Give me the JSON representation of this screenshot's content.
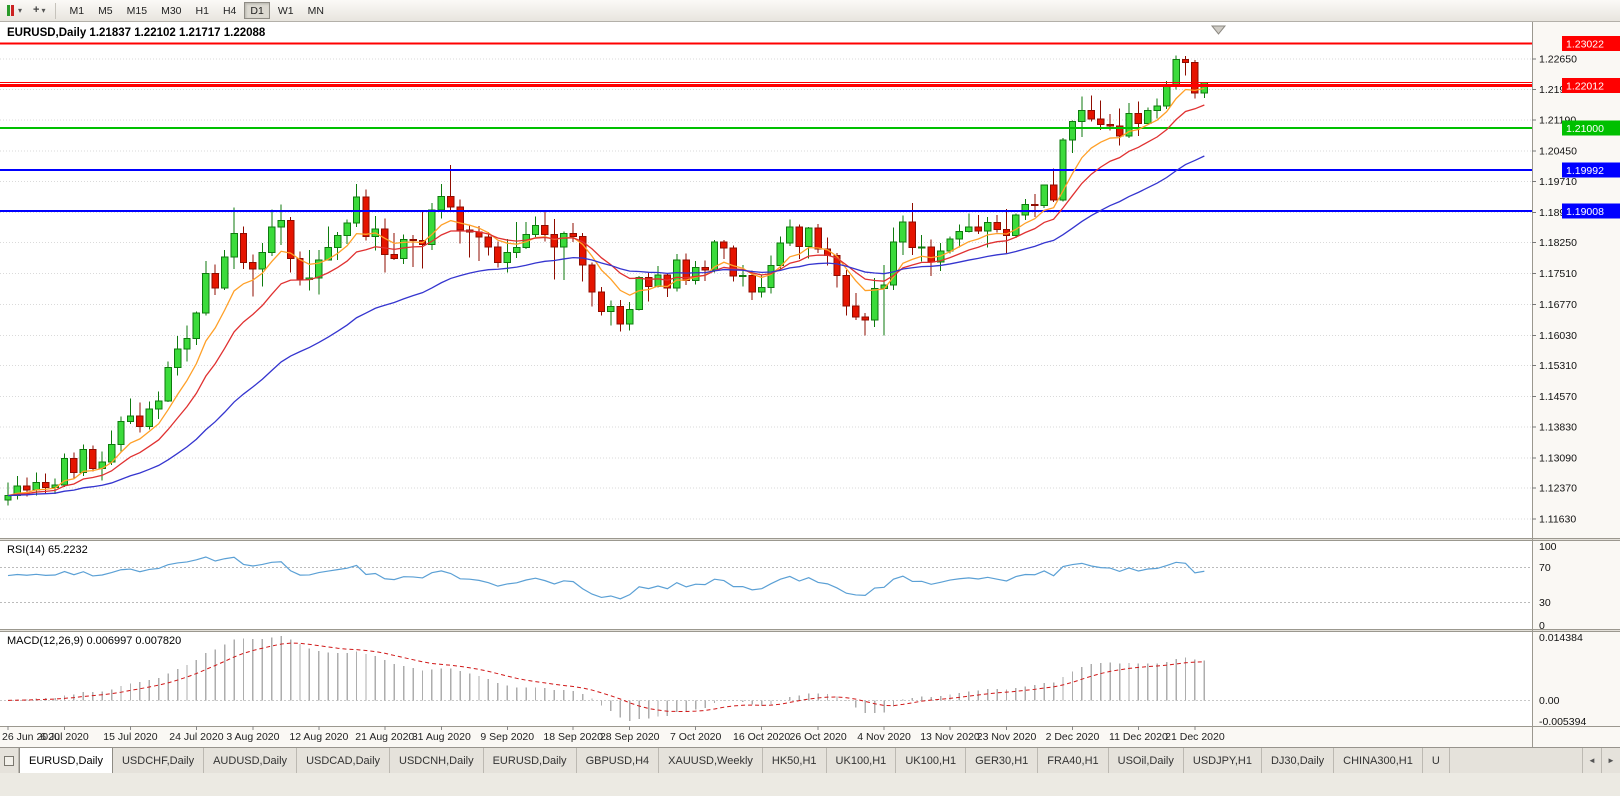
{
  "toolbar": {
    "timeframes": [
      "M1",
      "M5",
      "M15",
      "M30",
      "H1",
      "H4",
      "D1",
      "W1",
      "MN"
    ],
    "active_timeframe": "D1"
  },
  "icons": {
    "chevron_down": "▾",
    "cursor_plus": "+",
    "tab_scroll_left": "◄",
    "tab_scroll_right": "►"
  },
  "chart_header": {
    "title": "EURUSD,Daily 1.21837 1.22102 1.21717 1.22088"
  },
  "rsi_panel": {
    "title": "RSI(14) 65.2232",
    "levels": [
      "100",
      "70",
      "30",
      "0"
    ]
  },
  "macd_panel": {
    "title": "MACD(12,26,9) 0.006997 0.007820",
    "levels": [
      "0.014384",
      "0.00",
      "-0.005394"
    ]
  },
  "tabs": {
    "items": [
      {
        "label": "EURUSD,Daily",
        "active": true
      },
      {
        "label": "USDCHF,Daily"
      },
      {
        "label": "AUDUSD,Daily"
      },
      {
        "label": "USDCAD,Daily"
      },
      {
        "label": "USDCNH,Daily"
      },
      {
        "label": "EURUSD,Daily"
      },
      {
        "label": "GBPUSD,H4"
      },
      {
        "label": "XAUUSD,Weekly"
      },
      {
        "label": "HK50,H1"
      },
      {
        "label": "UK100,H1"
      },
      {
        "label": "UK100,H1"
      },
      {
        "label": "GER30,H1"
      },
      {
        "label": "FRA40,H1"
      },
      {
        "label": "USOil,Daily"
      },
      {
        "label": "USDJPY,H1"
      },
      {
        "label": "DJ30,Daily"
      },
      {
        "label": "CHINA300,H1"
      },
      {
        "label": "U"
      }
    ]
  },
  "chart_data": {
    "type": "candlestick",
    "symbol": "EURUSD",
    "timeframe": "Daily",
    "current_ohlc": {
      "open": 1.21837,
      "high": 1.22102,
      "low": 1.21717,
      "close": 1.22088
    },
    "price_axis": {
      "min": 1.11175,
      "max": 1.23536,
      "ticks": [
        "1.22650",
        "1.21920",
        "1.21190",
        "1.20450",
        "1.19710",
        "1.18970",
        "1.18250",
        "1.17510",
        "1.16770",
        "1.16030",
        "1.15310",
        "1.14570",
        "1.13830",
        "1.13090",
        "1.12370",
        "1.11630"
      ]
    },
    "colors": {
      "bull_fill": "#3BDB3B",
      "bull_stroke": "#0E7A0E",
      "bear_fill": "#E51400",
      "bear_stroke": "#8F0C00",
      "grid": "#DADada"
    },
    "hlines": [
      {
        "price": 1.23022,
        "label": "1.23022",
        "color": "#FF0000",
        "width": 2
      },
      {
        "price": 1.22088,
        "label": "",
        "color": "#FF0000",
        "width": 1
      },
      {
        "price": 1.22012,
        "label": "1.22012",
        "color": "#FF0000",
        "width": 3
      },
      {
        "price": 1.21,
        "label": "1.21000",
        "color": "#00C000",
        "width": 2
      },
      {
        "price": 1.19992,
        "label": "1.19992",
        "color": "#0000FF",
        "width": 2
      },
      {
        "price": 1.19008,
        "label": "1.19008",
        "color": "#0000FF",
        "width": 2
      }
    ],
    "moving_averages": [
      {
        "period": 7,
        "method": "ema",
        "color": "#FFA028"
      },
      {
        "period": 13,
        "method": "ema",
        "color": "#E03131"
      },
      {
        "period": 34,
        "method": "ema",
        "color": "#3535CF"
      }
    ],
    "rsi": {
      "period": 14,
      "current": 65.2232,
      "color": "#5BA0D5",
      "levels": [
        70,
        30
      ],
      "range": [
        0,
        100
      ]
    },
    "macd": {
      "fast": 12,
      "slow": 26,
      "signal": 9,
      "macd_value": 0.006997,
      "signal_value": 0.00782,
      "range": [
        -0.005394,
        0.014384
      ],
      "histogram_color": "#ADADAD",
      "signal_color": "#D01818"
    },
    "date_labels": [
      {
        "i": 0,
        "t": "26 Jun 2020"
      },
      {
        "i": 6,
        "t": "6 Jul 2020"
      },
      {
        "i": 13,
        "t": "15 Jul 2020"
      },
      {
        "i": 20,
        "t": "24 Jul 2020"
      },
      {
        "i": 26,
        "t": "3 Aug 2020"
      },
      {
        "i": 33,
        "t": "12 Aug 2020"
      },
      {
        "i": 40,
        "t": "21 Aug 2020"
      },
      {
        "i": 46,
        "t": "31 Aug 2020"
      },
      {
        "i": 53,
        "t": "9 Sep 2020"
      },
      {
        "i": 60,
        "t": "18 Sep 2020"
      },
      {
        "i": 66,
        "t": "28 Sep 2020"
      },
      {
        "i": 73,
        "t": "7 Oct 2020"
      },
      {
        "i": 80,
        "t": "16 Oct 2020"
      },
      {
        "i": 86,
        "t": "26 Oct 2020"
      },
      {
        "i": 93,
        "t": "4 Nov 2020"
      },
      {
        "i": 100,
        "t": "13 Nov 2020"
      },
      {
        "i": 106,
        "t": "23 Nov 2020"
      },
      {
        "i": 113,
        "t": "2 Dec 2020"
      },
      {
        "i": 120,
        "t": "11 Dec 2020"
      },
      {
        "i": 126,
        "t": "21 Dec 2020"
      }
    ],
    "candles": [
      [
        1.1208,
        1.125,
        1.1195,
        1.1219
      ],
      [
        1.1219,
        1.1266,
        1.121,
        1.1242
      ],
      [
        1.1242,
        1.1262,
        1.1217,
        1.1232
      ],
      [
        1.1232,
        1.1275,
        1.1219,
        1.1251
      ],
      [
        1.1251,
        1.1272,
        1.1223,
        1.1239
      ],
      [
        1.1239,
        1.126,
        1.1223,
        1.1245
      ],
      [
        1.1245,
        1.132,
        1.124,
        1.1308
      ],
      [
        1.1308,
        1.1322,
        1.1259,
        1.1274
      ],
      [
        1.1274,
        1.1342,
        1.1266,
        1.133
      ],
      [
        1.133,
        1.1339,
        1.1277,
        1.1284
      ],
      [
        1.1284,
        1.1325,
        1.1255,
        1.13
      ],
      [
        1.13,
        1.1375,
        1.1292,
        1.1342
      ],
      [
        1.1342,
        1.1409,
        1.1325,
        1.1397
      ],
      [
        1.1397,
        1.1452,
        1.139,
        1.141
      ],
      [
        1.141,
        1.1442,
        1.137,
        1.1385
      ],
      [
        1.1385,
        1.1444,
        1.1378,
        1.1427
      ],
      [
        1.1427,
        1.1468,
        1.1402,
        1.1446
      ],
      [
        1.1446,
        1.154,
        1.1443,
        1.1526
      ],
      [
        1.1526,
        1.1601,
        1.1507,
        1.157
      ],
      [
        1.157,
        1.1627,
        1.154,
        1.1596
      ],
      [
        1.1596,
        1.166,
        1.158,
        1.1656
      ],
      [
        1.1656,
        1.1781,
        1.165,
        1.1751
      ],
      [
        1.1751,
        1.1773,
        1.17,
        1.1716
      ],
      [
        1.1716,
        1.1807,
        1.1712,
        1.1791
      ],
      [
        1.1791,
        1.1909,
        1.1762,
        1.1847
      ],
      [
        1.1847,
        1.1864,
        1.1762,
        1.1778
      ],
      [
        1.1778,
        1.1797,
        1.1696,
        1.1762
      ],
      [
        1.1762,
        1.1824,
        1.172,
        1.1802
      ],
      [
        1.1802,
        1.1905,
        1.1793,
        1.1863
      ],
      [
        1.1863,
        1.1916,
        1.1819,
        1.1878
      ],
      [
        1.1878,
        1.1886,
        1.1754,
        1.1787
      ],
      [
        1.1787,
        1.1804,
        1.1722,
        1.1737
      ],
      [
        1.1737,
        1.1808,
        1.171,
        1.174
      ],
      [
        1.174,
        1.1808,
        1.1701,
        1.1784
      ],
      [
        1.1784,
        1.1864,
        1.1782,
        1.1813
      ],
      [
        1.1813,
        1.1851,
        1.1783,
        1.1842
      ],
      [
        1.1842,
        1.188,
        1.1822,
        1.1872
      ],
      [
        1.1872,
        1.1966,
        1.1863,
        1.1934
      ],
      [
        1.1934,
        1.1952,
        1.183,
        1.184
      ],
      [
        1.184,
        1.1889,
        1.1806,
        1.1858
      ],
      [
        1.1858,
        1.1883,
        1.1754,
        1.1797
      ],
      [
        1.1797,
        1.1848,
        1.1783,
        1.1787
      ],
      [
        1.1787,
        1.1845,
        1.1774,
        1.1833
      ],
      [
        1.1833,
        1.1843,
        1.1767,
        1.183
      ],
      [
        1.183,
        1.19,
        1.1763,
        1.182
      ],
      [
        1.182,
        1.192,
        1.1808,
        1.1903
      ],
      [
        1.1903,
        1.1965,
        1.1883,
        1.1935
      ],
      [
        1.1935,
        1.2011,
        1.1898,
        1.191
      ],
      [
        1.191,
        1.1928,
        1.1823,
        1.1855
      ],
      [
        1.1855,
        1.1868,
        1.1789,
        1.1851
      ],
      [
        1.1851,
        1.1865,
        1.1781,
        1.1839
      ],
      [
        1.1839,
        1.185,
        1.1794,
        1.1815
      ],
      [
        1.1815,
        1.1828,
        1.1766,
        1.1778
      ],
      [
        1.1778,
        1.1834,
        1.1753,
        1.1802
      ],
      [
        1.1802,
        1.1874,
        1.1788,
        1.1814
      ],
      [
        1.1814,
        1.1874,
        1.181,
        1.1845
      ],
      [
        1.1845,
        1.1888,
        1.1839,
        1.1866
      ],
      [
        1.1866,
        1.19,
        1.1828,
        1.1845
      ],
      [
        1.1845,
        1.1882,
        1.1737,
        1.1815
      ],
      [
        1.1815,
        1.1852,
        1.1736,
        1.1847
      ],
      [
        1.1847,
        1.1872,
        1.1827,
        1.184
      ],
      [
        1.184,
        1.1848,
        1.1732,
        1.1772
      ],
      [
        1.1772,
        1.1778,
        1.1672,
        1.1707
      ],
      [
        1.1707,
        1.1719,
        1.1651,
        1.166
      ],
      [
        1.166,
        1.1686,
        1.1626,
        1.1672
      ],
      [
        1.1672,
        1.1688,
        1.1612,
        1.163
      ],
      [
        1.163,
        1.1683,
        1.1615,
        1.1665
      ],
      [
        1.1665,
        1.1745,
        1.1662,
        1.1742
      ],
      [
        1.1742,
        1.1755,
        1.1684,
        1.172
      ],
      [
        1.172,
        1.1769,
        1.1717,
        1.1747
      ],
      [
        1.1747,
        1.1752,
        1.1695,
        1.1716
      ],
      [
        1.1716,
        1.1798,
        1.1708,
        1.1783
      ],
      [
        1.1783,
        1.1799,
        1.1724,
        1.1734
      ],
      [
        1.1734,
        1.1781,
        1.1725,
        1.1765
      ],
      [
        1.1765,
        1.1782,
        1.1733,
        1.176
      ],
      [
        1.176,
        1.1831,
        1.1754,
        1.1826
      ],
      [
        1.1826,
        1.1831,
        1.1786,
        1.1812
      ],
      [
        1.1812,
        1.1818,
        1.1732,
        1.1745
      ],
      [
        1.1745,
        1.1772,
        1.172,
        1.1746
      ],
      [
        1.1746,
        1.1758,
        1.1688,
        1.1707
      ],
      [
        1.1707,
        1.1746,
        1.1694,
        1.1718
      ],
      [
        1.1718,
        1.1794,
        1.1703,
        1.177
      ],
      [
        1.177,
        1.184,
        1.176,
        1.1824
      ],
      [
        1.1824,
        1.1881,
        1.1817,
        1.1862
      ],
      [
        1.1862,
        1.1868,
        1.1786,
        1.1816
      ],
      [
        1.1816,
        1.1863,
        1.1787,
        1.186
      ],
      [
        1.186,
        1.187,
        1.18,
        1.181
      ],
      [
        1.181,
        1.1837,
        1.177,
        1.1794
      ],
      [
        1.1794,
        1.18,
        1.1718,
        1.1746
      ],
      [
        1.1746,
        1.1759,
        1.165,
        1.1673
      ],
      [
        1.1673,
        1.1704,
        1.164,
        1.1647
      ],
      [
        1.1647,
        1.1657,
        1.1603,
        1.164
      ],
      [
        1.164,
        1.174,
        1.1623,
        1.1715
      ],
      [
        1.1715,
        1.1771,
        1.1602,
        1.1723
      ],
      [
        1.1723,
        1.1861,
        1.1711,
        1.1827
      ],
      [
        1.1827,
        1.189,
        1.1795,
        1.1875
      ],
      [
        1.1875,
        1.192,
        1.1795,
        1.1813
      ],
      [
        1.1813,
        1.1843,
        1.178,
        1.1815
      ],
      [
        1.1815,
        1.1833,
        1.1745,
        1.1779
      ],
      [
        1.1779,
        1.1824,
        1.1757,
        1.1805
      ],
      [
        1.1805,
        1.184,
        1.1799,
        1.1834
      ],
      [
        1.1834,
        1.1869,
        1.1814,
        1.1852
      ],
      [
        1.1852,
        1.1895,
        1.1849,
        1.1863
      ],
      [
        1.1863,
        1.1891,
        1.1846,
        1.1853
      ],
      [
        1.1853,
        1.1886,
        1.1814,
        1.1873
      ],
      [
        1.1873,
        1.1891,
        1.1849,
        1.1857
      ],
      [
        1.1857,
        1.1906,
        1.18,
        1.1842
      ],
      [
        1.1842,
        1.1895,
        1.1836,
        1.1891
      ],
      [
        1.1891,
        1.193,
        1.1879,
        1.1916
      ],
      [
        1.1916,
        1.1941,
        1.1886,
        1.1914
      ],
      [
        1.1914,
        1.1964,
        1.1908,
        1.1963
      ],
      [
        1.1963,
        1.2003,
        1.1923,
        1.1927
      ],
      [
        1.1927,
        1.2076,
        1.1924,
        1.2071
      ],
      [
        1.2071,
        1.2118,
        1.204,
        1.2115
      ],
      [
        1.2115,
        1.2175,
        1.2078,
        1.2142
      ],
      [
        1.2142,
        1.2177,
        1.2115,
        1.2121
      ],
      [
        1.2121,
        1.2166,
        1.2095,
        1.2108
      ],
      [
        1.2108,
        1.2133,
        1.2094,
        1.2105
      ],
      [
        1.2105,
        1.2146,
        1.2058,
        1.208
      ],
      [
        1.208,
        1.2159,
        1.2076,
        1.2135
      ],
      [
        1.2135,
        1.2163,
        1.208,
        1.2111
      ],
      [
        1.2111,
        1.2149,
        1.211,
        1.2142
      ],
      [
        1.2142,
        1.217,
        1.2122,
        1.2152
      ],
      [
        1.2152,
        1.2212,
        1.2145,
        1.2199
      ],
      [
        1.2199,
        1.2273,
        1.2192,
        1.2264
      ],
      [
        1.2264,
        1.2272,
        1.2225,
        1.2257
      ],
      [
        1.2257,
        1.2262,
        1.217,
        1.2184
      ],
      [
        1.21837,
        1.22102,
        1.21717,
        1.22088
      ]
    ]
  }
}
